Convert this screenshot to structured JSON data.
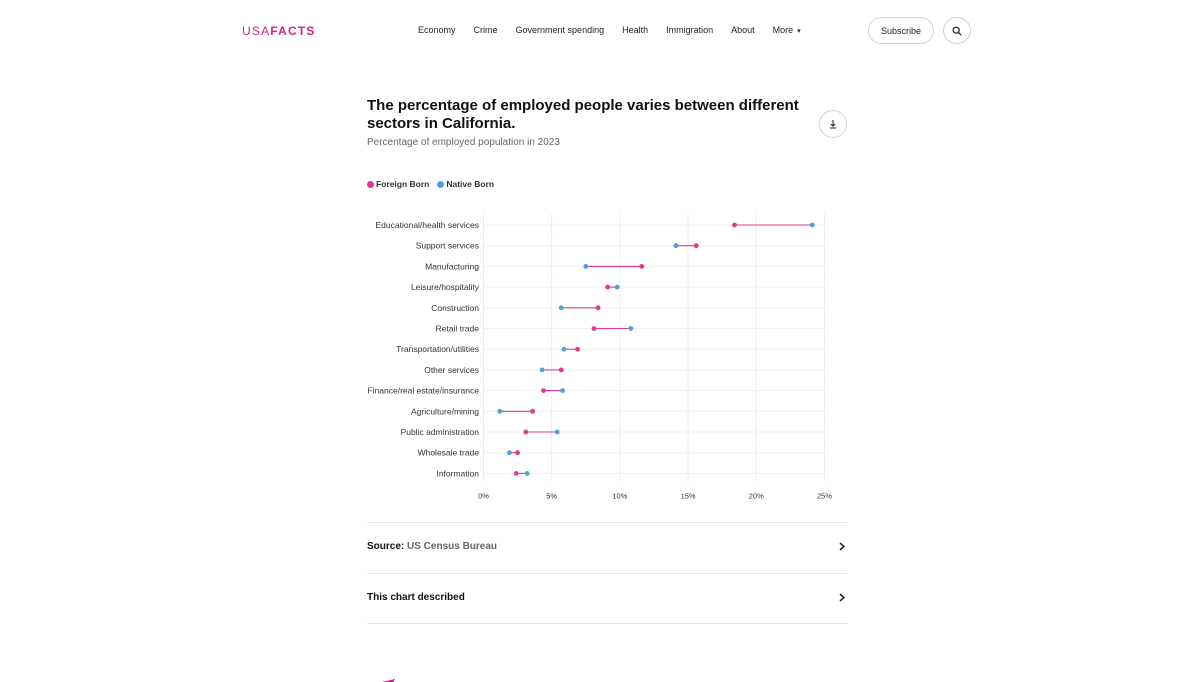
{
  "header": {
    "logo_part1": "USA",
    "logo_part2": "FACTS",
    "nav": [
      "Economy",
      "Crime",
      "Government spending",
      "Health",
      "Immigration",
      "About",
      "More"
    ],
    "subscribe_label": "Subscribe"
  },
  "chart": {
    "title": "The percentage of employed people varies between different sectors in California.",
    "subtitle": "Percentage of employed population in 2023",
    "source_label": "Source:",
    "source_value": "US Census Bureau",
    "described_label": "This chart described"
  },
  "colors": {
    "foreign": "#e0398d",
    "native": "#4aa3df",
    "brand": "#d6247e"
  },
  "chart_data": {
    "type": "dumbbell",
    "title": "The percentage of employed people varies between different sectors in California.",
    "subtitle": "Percentage of employed population in 2023",
    "legend": [
      "Foreign Born",
      "Native Born"
    ],
    "categories": [
      "Educational/health services",
      "Support services",
      "Manufacturing",
      "Leisure/hospitality",
      "Construction",
      "Retail trade",
      "Transportation/utilities",
      "Other services",
      "Finance/real estate/insurance",
      "Agriculture/mining",
      "Public administration",
      "Wholesale trade",
      "Information"
    ],
    "series": [
      {
        "name": "Foreign Born",
        "values": [
          18.4,
          15.6,
          11.6,
          9.1,
          8.4,
          8.1,
          6.9,
          5.7,
          4.4,
          3.6,
          3.1,
          2.5,
          2.4
        ]
      },
      {
        "name": "Native Born",
        "values": [
          24.1,
          14.1,
          7.5,
          9.8,
          5.7,
          10.8,
          5.9,
          4.3,
          5.8,
          1.2,
          5.4,
          1.9,
          3.2
        ]
      }
    ],
    "xlim": [
      0,
      25
    ],
    "xticks": [
      "0%",
      "5%",
      "10%",
      "15%",
      "20%",
      "25%"
    ]
  }
}
